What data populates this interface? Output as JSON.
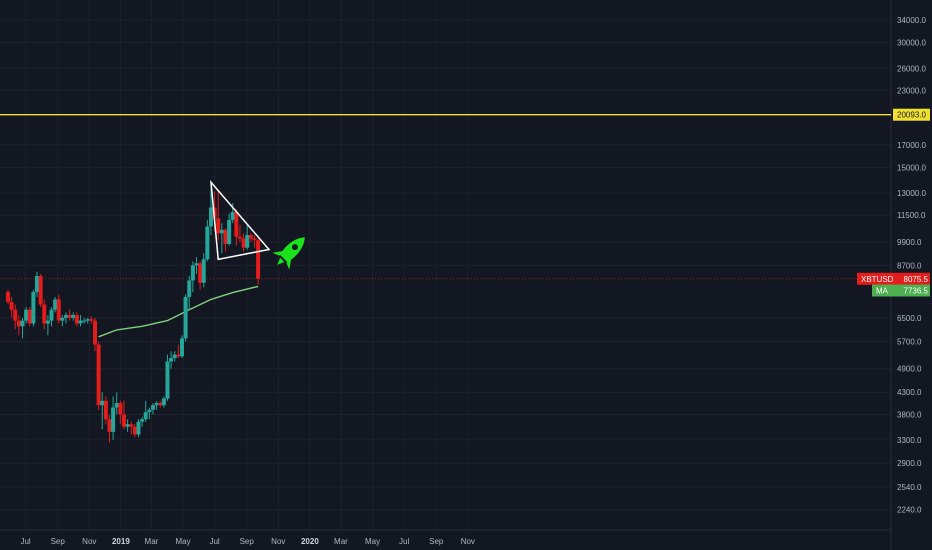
{
  "chart_data": {
    "type": "candlestick",
    "symbol": "XBTUSD",
    "scale": "log",
    "ylim": [
      2000,
      38000
    ],
    "y_ticks": [
      "34000.0",
      "30000.0",
      "26000.0",
      "23000.0",
      "17000.0",
      "15000.0",
      "13000.0",
      "11500.0",
      "9900.0",
      "8700.0",
      "6500.0",
      "5700.0",
      "4900.0",
      "4300.0",
      "3800.0",
      "3300.0",
      "2900.0",
      "2540.0",
      "2240.0"
    ],
    "x_ticks": [
      {
        "label": "Jul",
        "date": "2018-07-01"
      },
      {
        "label": "Sep",
        "date": "2018-09-01"
      },
      {
        "label": "Nov",
        "date": "2018-11-01"
      },
      {
        "label": "2019",
        "date": "2019-01-01",
        "bold": true
      },
      {
        "label": "Mar",
        "date": "2019-03-01"
      },
      {
        "label": "May",
        "date": "2019-05-01"
      },
      {
        "label": "Jul",
        "date": "2019-07-01"
      },
      {
        "label": "Sep",
        "date": "2019-09-01"
      },
      {
        "label": "Nov",
        "date": "2019-11-01"
      },
      {
        "label": "2020",
        "date": "2020-01-01",
        "bold": true
      },
      {
        "label": "Mar",
        "date": "2020-03-01"
      },
      {
        "label": "May",
        "date": "2020-05-01"
      },
      {
        "label": "Jul",
        "date": "2020-07-01"
      },
      {
        "label": "Sep",
        "date": "2020-09-01"
      },
      {
        "label": "Nov",
        "date": "2020-11-01"
      }
    ],
    "horizontal_level": {
      "value": 20093.0,
      "label": "20093.0",
      "color": "#f0e130"
    },
    "last_price": {
      "label": "XBTUSD",
      "value": "8075.5",
      "price": 8075.5,
      "color": "#e31c1c"
    },
    "ma": {
      "label": "MA",
      "value": "7736.5",
      "price": 7736.5,
      "color": "#4caf50",
      "points": [
        [
          "2018-11-19",
          5850
        ],
        [
          "2018-12-24",
          6080
        ],
        [
          "2019-02-11",
          6200
        ],
        [
          "2019-04-01",
          6400
        ],
        [
          "2019-05-13",
          6800
        ],
        [
          "2019-06-24",
          7200
        ],
        [
          "2019-08-05",
          7480
        ],
        [
          "2019-09-23",
          7740
        ]
      ]
    },
    "candles": [
      [
        "2018-05-28",
        7500,
        7600,
        7000,
        7100
      ],
      [
        "2018-06-04",
        7100,
        7300,
        6500,
        6800
      ],
      [
        "2018-06-11",
        6800,
        7000,
        6100,
        6400
      ],
      [
        "2018-06-18",
        6400,
        6600,
        5900,
        6200
      ],
      [
        "2018-06-25",
        6200,
        6500,
        5800,
        6400
      ],
      [
        "2018-07-02",
        6400,
        6900,
        6300,
        6800
      ],
      [
        "2018-07-09",
        6800,
        6900,
        6200,
        6300
      ],
      [
        "2018-07-16",
        6300,
        7600,
        6200,
        7500
      ],
      [
        "2018-07-23",
        7500,
        8400,
        7300,
        8200
      ],
      [
        "2018-07-30",
        8200,
        8300,
        6900,
        7000
      ],
      [
        "2018-08-06",
        7000,
        7200,
        6100,
        6300
      ],
      [
        "2018-08-13",
        6300,
        6600,
        5900,
        6400
      ],
      [
        "2018-08-20",
        6400,
        6900,
        6200,
        6800
      ],
      [
        "2018-08-27",
        6800,
        7300,
        6700,
        7200
      ],
      [
        "2018-09-03",
        7200,
        7400,
        6300,
        6400
      ],
      [
        "2018-09-10",
        6400,
        6600,
        6200,
        6500
      ],
      [
        "2018-09-17",
        6500,
        6700,
        6300,
        6600
      ],
      [
        "2018-09-24",
        6600,
        6800,
        6400,
        6500
      ],
      [
        "2018-10-01",
        6500,
        6700,
        6400,
        6600
      ],
      [
        "2018-10-08",
        6600,
        6700,
        6200,
        6300
      ],
      [
        "2018-10-15",
        6300,
        6600,
        6200,
        6400
      ],
      [
        "2018-10-22",
        6400,
        6500,
        6300,
        6400
      ],
      [
        "2018-10-29",
        6400,
        6500,
        6300,
        6450
      ],
      [
        "2018-11-05",
        6450,
        6550,
        6300,
        6400
      ],
      [
        "2018-11-12",
        6400,
        6500,
        5400,
        5600
      ],
      [
        "2018-11-19",
        5600,
        5700,
        3900,
        4000
      ],
      [
        "2018-11-26",
        4000,
        4300,
        3500,
        4100
      ],
      [
        "2018-12-03",
        4100,
        4200,
        3600,
        3700
      ],
      [
        "2018-12-10",
        3700,
        3800,
        3250,
        3450
      ],
      [
        "2018-12-17",
        3450,
        4200,
        3300,
        3950
      ],
      [
        "2018-12-24",
        3950,
        4300,
        3800,
        4050
      ],
      [
        "2018-12-31",
        4050,
        4100,
        3600,
        3800
      ],
      [
        "2019-01-07",
        3800,
        4100,
        3500,
        3550
      ],
      [
        "2019-01-14",
        3550,
        3700,
        3450,
        3600
      ],
      [
        "2019-01-21",
        3600,
        3650,
        3400,
        3550
      ],
      [
        "2019-01-28",
        3550,
        3600,
        3350,
        3400
      ],
      [
        "2019-02-04",
        3400,
        3700,
        3350,
        3650
      ],
      [
        "2019-02-11",
        3650,
        3750,
        3550,
        3700
      ],
      [
        "2019-02-18",
        3700,
        4100,
        3650,
        3850
      ],
      [
        "2019-02-25",
        3850,
        3950,
        3700,
        3900
      ],
      [
        "2019-03-04",
        3900,
        4050,
        3800,
        4000
      ],
      [
        "2019-03-11",
        4000,
        4100,
        3900,
        4050
      ],
      [
        "2019-03-18",
        4050,
        4100,
        3950,
        4000
      ],
      [
        "2019-03-25",
        4000,
        4200,
        3950,
        4150
      ],
      [
        "2019-04-01",
        4150,
        5300,
        4100,
        5100
      ],
      [
        "2019-04-08",
        5100,
        5400,
        4900,
        5200
      ],
      [
        "2019-04-15",
        5200,
        5400,
        5100,
        5300
      ],
      [
        "2019-04-22",
        5300,
        5600,
        5200,
        5250
      ],
      [
        "2019-04-29",
        5250,
        5900,
        5200,
        5800
      ],
      [
        "2019-05-06",
        5800,
        7400,
        5700,
        7300
      ],
      [
        "2019-05-13",
        7300,
        8200,
        6800,
        8000
      ],
      [
        "2019-05-20",
        8000,
        8900,
        7500,
        8700
      ],
      [
        "2019-05-27",
        8700,
        9100,
        8300,
        8800
      ],
      [
        "2019-06-03",
        8800,
        8900,
        7600,
        7900
      ],
      [
        "2019-06-10",
        7900,
        9300,
        7700,
        9000
      ],
      [
        "2019-06-17",
        9000,
        11200,
        8900,
        10800
      ],
      [
        "2019-06-24",
        10800,
        13800,
        10300,
        12000
      ],
      [
        "2019-07-01",
        12000,
        13100,
        10500,
        11300
      ],
      [
        "2019-07-08",
        11300,
        13200,
        10000,
        10400
      ],
      [
        "2019-07-15",
        10400,
        11000,
        9300,
        10600
      ],
      [
        "2019-07-22",
        10600,
        10700,
        9400,
        9800
      ],
      [
        "2019-07-29",
        9800,
        11600,
        9700,
        11200
      ],
      [
        "2019-08-05",
        11200,
        12300,
        11000,
        11700
      ],
      [
        "2019-08-12",
        11700,
        11900,
        9700,
        10200
      ],
      [
        "2019-08-19",
        10200,
        10900,
        9900,
        10100
      ],
      [
        "2019-08-26",
        10100,
        10400,
        9400,
        9600
      ],
      [
        "2019-09-02",
        9600,
        10900,
        9500,
        10300
      ],
      [
        "2019-09-09",
        10300,
        10400,
        9900,
        10100
      ],
      [
        "2019-09-16",
        10100,
        10300,
        9600,
        10000
      ],
      [
        "2019-09-23",
        10000,
        10100,
        7800,
        8075.5
      ]
    ],
    "triangle": [
      [
        "2019-06-24",
        13800
      ],
      [
        "2019-10-14",
        9500
      ],
      [
        "2019-07-08",
        9000
      ]
    ],
    "annotation": {
      "icon": "rocket-icon",
      "date": "2019-11-25",
      "price": 9400,
      "color": "#1be31b"
    }
  }
}
